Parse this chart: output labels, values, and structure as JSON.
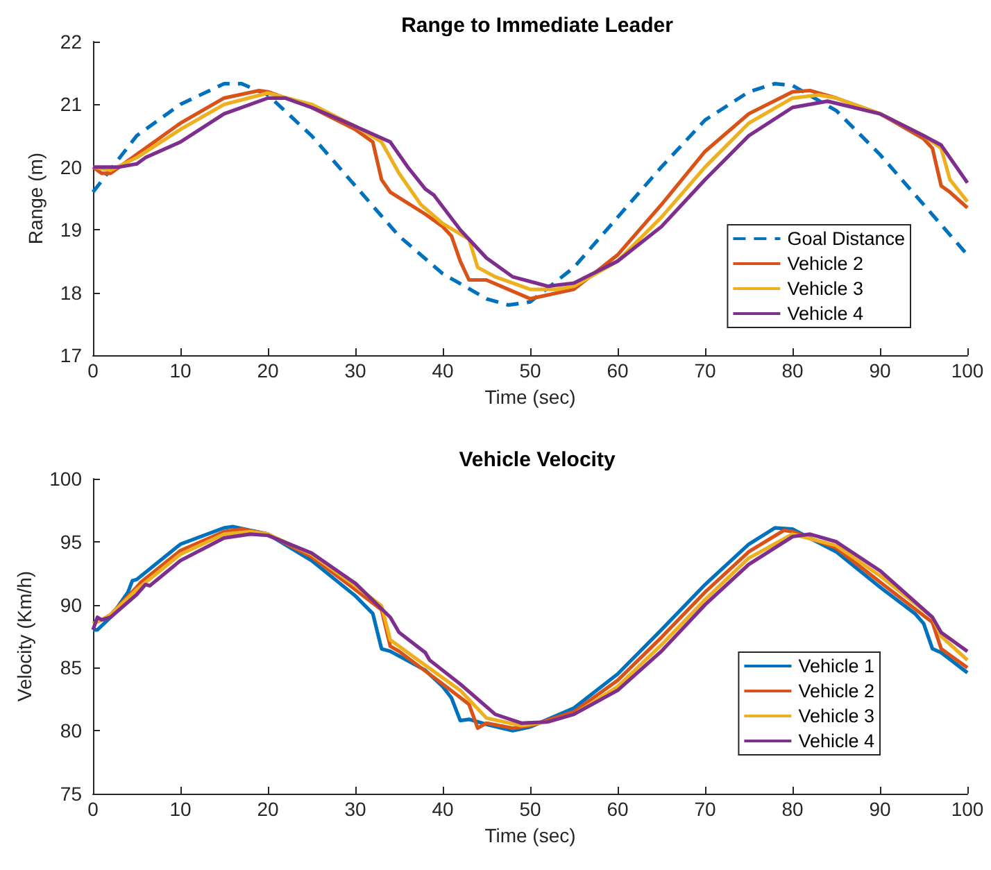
{
  "chart_data": [
    {
      "type": "line",
      "title": "Range to Immediate Leader",
      "xlabel": "Time (sec)",
      "ylabel": "Range (m)",
      "xlim": [
        0,
        100
      ],
      "xticks": [
        0,
        10,
        20,
        30,
        40,
        50,
        60,
        70,
        80,
        90,
        100
      ],
      "ylim": [
        17,
        22
      ],
      "yticks": [
        17,
        18,
        19,
        20,
        21,
        22
      ],
      "grid": false,
      "legend": "bottom right",
      "marker": "none",
      "series": [
        {
          "name": "Goal Distance",
          "color": "#0072bd",
          "line_style": "dashed",
          "x": [
            0,
            5,
            10,
            15,
            17,
            20,
            25,
            30,
            35,
            40,
            45,
            47.5,
            50,
            55,
            60,
            65,
            70,
            75,
            78,
            80,
            85,
            90,
            95,
            100
          ],
          "values": [
            19.6,
            20.5,
            21.0,
            21.33,
            21.33,
            21.15,
            20.5,
            19.7,
            18.9,
            18.3,
            17.9,
            17.8,
            17.85,
            18.4,
            19.2,
            20.0,
            20.75,
            21.2,
            21.33,
            21.3,
            20.9,
            20.2,
            19.4,
            18.6
          ]
        },
        {
          "name": "Vehicle 2",
          "color": "#d95319",
          "line_style": "solid",
          "x": [
            0,
            1,
            2,
            5,
            10,
            15,
            19,
            20,
            25,
            30,
            32,
            33,
            34,
            38,
            40,
            41,
            42,
            43,
            44,
            45,
            50,
            55,
            60,
            65,
            70,
            75,
            80,
            82,
            85,
            90,
            95,
            96,
            97,
            98,
            100
          ],
          "values": [
            20.0,
            19.9,
            19.9,
            20.2,
            20.7,
            21.1,
            21.22,
            21.2,
            20.95,
            20.6,
            20.4,
            19.8,
            19.6,
            19.25,
            19.05,
            18.9,
            18.5,
            18.2,
            18.2,
            18.2,
            17.9,
            18.05,
            18.6,
            19.4,
            20.25,
            20.85,
            21.2,
            21.22,
            21.1,
            20.85,
            20.45,
            20.3,
            19.7,
            19.6,
            19.35
          ]
        },
        {
          "name": "Vehicle 3",
          "color": "#edb120",
          "line_style": "solid",
          "x": [
            0,
            2,
            5,
            10,
            15,
            20,
            25,
            30,
            33,
            35,
            37.5,
            40,
            43,
            44,
            46,
            50,
            53,
            55,
            60,
            65,
            70,
            75,
            80,
            83,
            85,
            90,
            95,
            97,
            98,
            100
          ],
          "values": [
            20.0,
            19.95,
            20.15,
            20.6,
            21.0,
            21.18,
            21.0,
            20.65,
            20.4,
            19.9,
            19.4,
            19.1,
            18.85,
            18.4,
            18.25,
            18.05,
            18.05,
            18.1,
            18.5,
            19.2,
            20.0,
            20.7,
            21.1,
            21.15,
            21.1,
            20.85,
            20.5,
            20.3,
            19.8,
            19.45
          ]
        },
        {
          "name": "Vehicle 4",
          "color": "#7e2f8e",
          "line_style": "solid",
          "x": [
            0,
            3,
            5,
            6,
            10,
            15,
            20,
            22,
            25,
            30,
            34,
            36,
            38,
            39,
            42,
            45,
            48,
            52,
            55,
            60,
            65,
            70,
            75,
            80,
            84,
            90,
            95,
            97,
            100
          ],
          "values": [
            20.0,
            20.0,
            20.05,
            20.15,
            20.4,
            20.85,
            21.1,
            21.1,
            20.95,
            20.65,
            20.4,
            20.0,
            19.65,
            19.55,
            19.0,
            18.55,
            18.25,
            18.1,
            18.15,
            18.5,
            19.05,
            19.8,
            20.5,
            20.95,
            21.05,
            20.85,
            20.5,
            20.35,
            19.75
          ]
        }
      ]
    },
    {
      "type": "line",
      "title": "Vehicle Velocity",
      "xlabel": "Time (sec)",
      "ylabel": "Velocity (Km/h)",
      "xlim": [
        0,
        100
      ],
      "xticks": [
        0,
        10,
        20,
        30,
        40,
        50,
        60,
        70,
        80,
        90,
        100
      ],
      "ylim": [
        75,
        100
      ],
      "yticks": [
        75,
        80,
        85,
        90,
        95,
        100
      ],
      "grid": false,
      "legend": "bottom right",
      "marker": "none",
      "line_style": "solid",
      "series": [
        {
          "name": "Vehicle 1",
          "color": "#0072bd",
          "x": [
            0,
            0.5,
            2,
            4,
            4.5,
            5,
            10,
            15,
            16,
            20,
            25,
            30,
            32,
            33,
            34,
            38,
            40,
            41,
            42,
            43,
            45,
            48,
            50,
            55,
            60,
            65,
            70,
            75,
            78,
            80,
            85,
            90,
            94,
            95,
            96,
            97,
            100
          ],
          "values": [
            88,
            88,
            89,
            91,
            91.9,
            92,
            94.8,
            96.1,
            96.2,
            95.6,
            93.5,
            90.7,
            89.3,
            86.5,
            86.3,
            84.8,
            83.5,
            82.6,
            80.8,
            80.9,
            80.5,
            80.0,
            80.3,
            81.8,
            84.5,
            88,
            91.6,
            94.8,
            96.1,
            96,
            94.2,
            91.4,
            89.3,
            88.5,
            86.5,
            86.2,
            84.6
          ]
        },
        {
          "name": "Vehicle 2",
          "color": "#d95319",
          "x": [
            0,
            1,
            2,
            5,
            5.5,
            10,
            15,
            17,
            20,
            25,
            30,
            33,
            34,
            35,
            40,
            43,
            44,
            45,
            48,
            50,
            55,
            60,
            65,
            70,
            75,
            79,
            80,
            85,
            90,
            96,
            97,
            98,
            100
          ],
          "values": [
            88.5,
            88.8,
            89.2,
            91.4,
            91.8,
            94.3,
            95.8,
            96.0,
            95.6,
            93.8,
            91.2,
            89.6,
            86.7,
            86.3,
            83.7,
            82.1,
            80.2,
            80.6,
            80.2,
            80.4,
            81.5,
            84,
            87.4,
            91,
            94.2,
            95.9,
            95.8,
            94.5,
            91.8,
            88.6,
            86.5,
            86,
            85.0
          ]
        },
        {
          "name": "Vehicle 3",
          "color": "#edb120",
          "x": [
            0,
            1,
            2,
            5,
            10,
            15,
            18,
            20,
            25,
            30,
            33,
            34,
            38,
            42,
            45,
            49,
            52,
            55,
            60,
            65,
            70,
            75,
            80,
            85,
            90,
            96,
            97,
            100
          ],
          "values": [
            88.5,
            88.8,
            89.2,
            91.2,
            94.0,
            95.6,
            95.8,
            95.6,
            94.0,
            91.5,
            89.9,
            87.2,
            85.2,
            83.2,
            81.0,
            80.4,
            80.7,
            81.3,
            83.5,
            86.8,
            90.4,
            93.7,
            95.6,
            94.7,
            92.3,
            89,
            87.5,
            85.6
          ]
        },
        {
          "name": "Vehicle 4",
          "color": "#7e2f8e",
          "x": [
            0,
            0.5,
            1,
            2,
            5,
            6,
            6.5,
            10,
            15,
            18,
            20,
            25,
            30,
            34,
            35,
            38,
            38.5,
            42,
            46,
            49,
            52,
            55,
            60,
            65,
            70,
            75,
            80,
            82,
            85,
            90,
            96,
            97,
            100
          ],
          "values": [
            88,
            89,
            88.8,
            89,
            90.8,
            91.6,
            91.5,
            93.5,
            95.3,
            95.6,
            95.5,
            94.1,
            91.7,
            89.0,
            87.8,
            86.2,
            85.6,
            83.7,
            81.3,
            80.6,
            80.7,
            81.3,
            83.2,
            86.3,
            90,
            93.2,
            95.4,
            95.6,
            95.0,
            92.7,
            89.0,
            87.8,
            86.3
          ]
        }
      ]
    }
  ]
}
